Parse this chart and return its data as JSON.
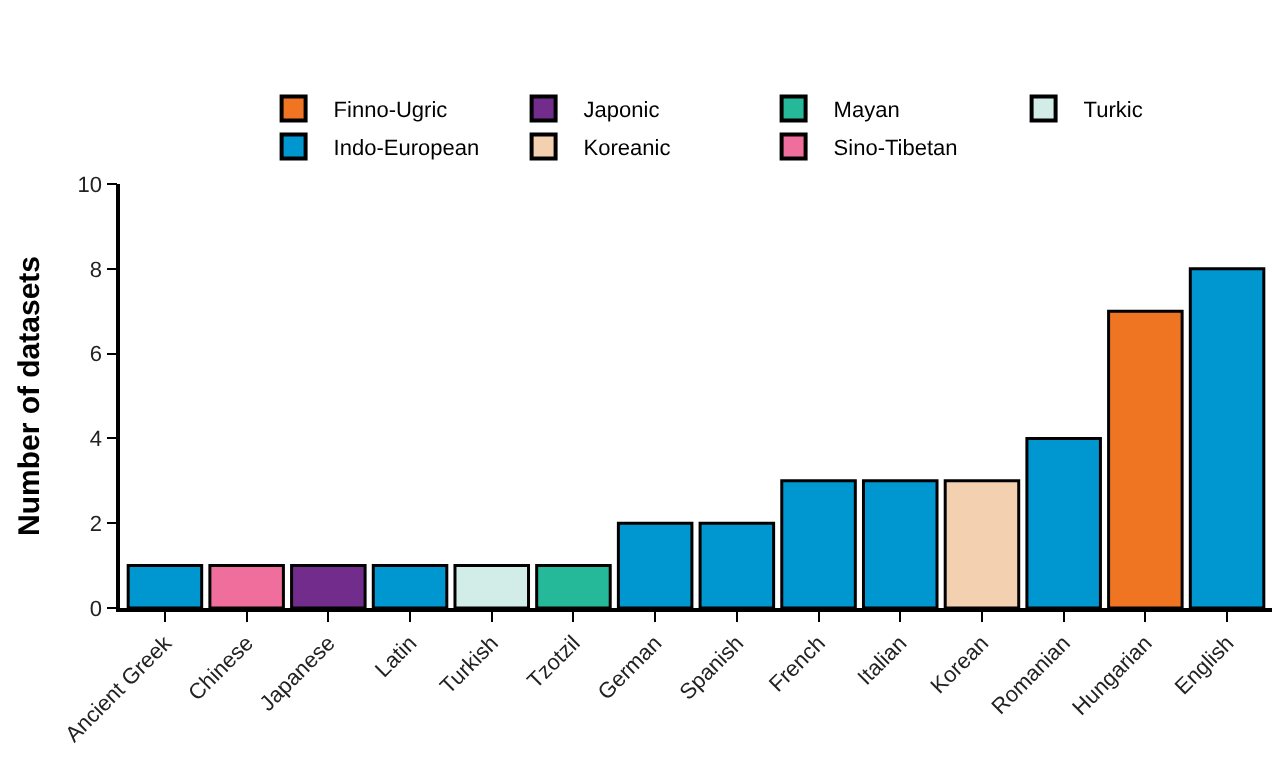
{
  "chart_data": {
    "type": "bar",
    "ylabel": "Number of datasets",
    "categories": [
      "Ancient Greek",
      "Chinese",
      "Japanese",
      "Latin",
      "Turkish",
      "Tzotzil",
      "German",
      "Spanish",
      "French",
      "Italian",
      "Korean",
      "Romanian",
      "Hungarian",
      "English"
    ],
    "series": [
      {
        "name": "Finno-Ugric",
        "color": "#f07523",
        "values": [
          null,
          null,
          null,
          null,
          null,
          null,
          null,
          null,
          null,
          null,
          null,
          null,
          7,
          null
        ]
      },
      {
        "name": "Japonic",
        "color": "#712c8c",
        "values": [
          null,
          null,
          1,
          null,
          null,
          null,
          null,
          null,
          null,
          null,
          null,
          null,
          null,
          null
        ]
      },
      {
        "name": "Mayan",
        "color": "#25b99a",
        "values": [
          null,
          null,
          null,
          null,
          null,
          1,
          null,
          null,
          null,
          null,
          null,
          null,
          null,
          null
        ]
      },
      {
        "name": "Turkic",
        "color": "#d2ede8",
        "values": [
          null,
          null,
          null,
          null,
          1,
          null,
          null,
          null,
          null,
          null,
          null,
          null,
          null,
          null
        ]
      },
      {
        "name": "Indo-European",
        "color": "#0097d0",
        "values": [
          1,
          null,
          null,
          1,
          null,
          null,
          2,
          2,
          3,
          3,
          null,
          4,
          null,
          8
        ]
      },
      {
        "name": "Koreanic",
        "color": "#f3d1b0",
        "values": [
          null,
          null,
          null,
          null,
          null,
          null,
          null,
          null,
          null,
          null,
          3,
          null,
          null,
          null
        ]
      },
      {
        "name": "Sino-Tibetan",
        "color": "#f06e9c",
        "values": [
          null,
          1,
          null,
          null,
          null,
          null,
          null,
          null,
          null,
          null,
          null,
          null,
          null,
          null
        ]
      }
    ],
    "ylim": [
      0,
      10
    ],
    "yticks": [
      0,
      2,
      4,
      6,
      8,
      10
    ],
    "legend": "top"
  }
}
